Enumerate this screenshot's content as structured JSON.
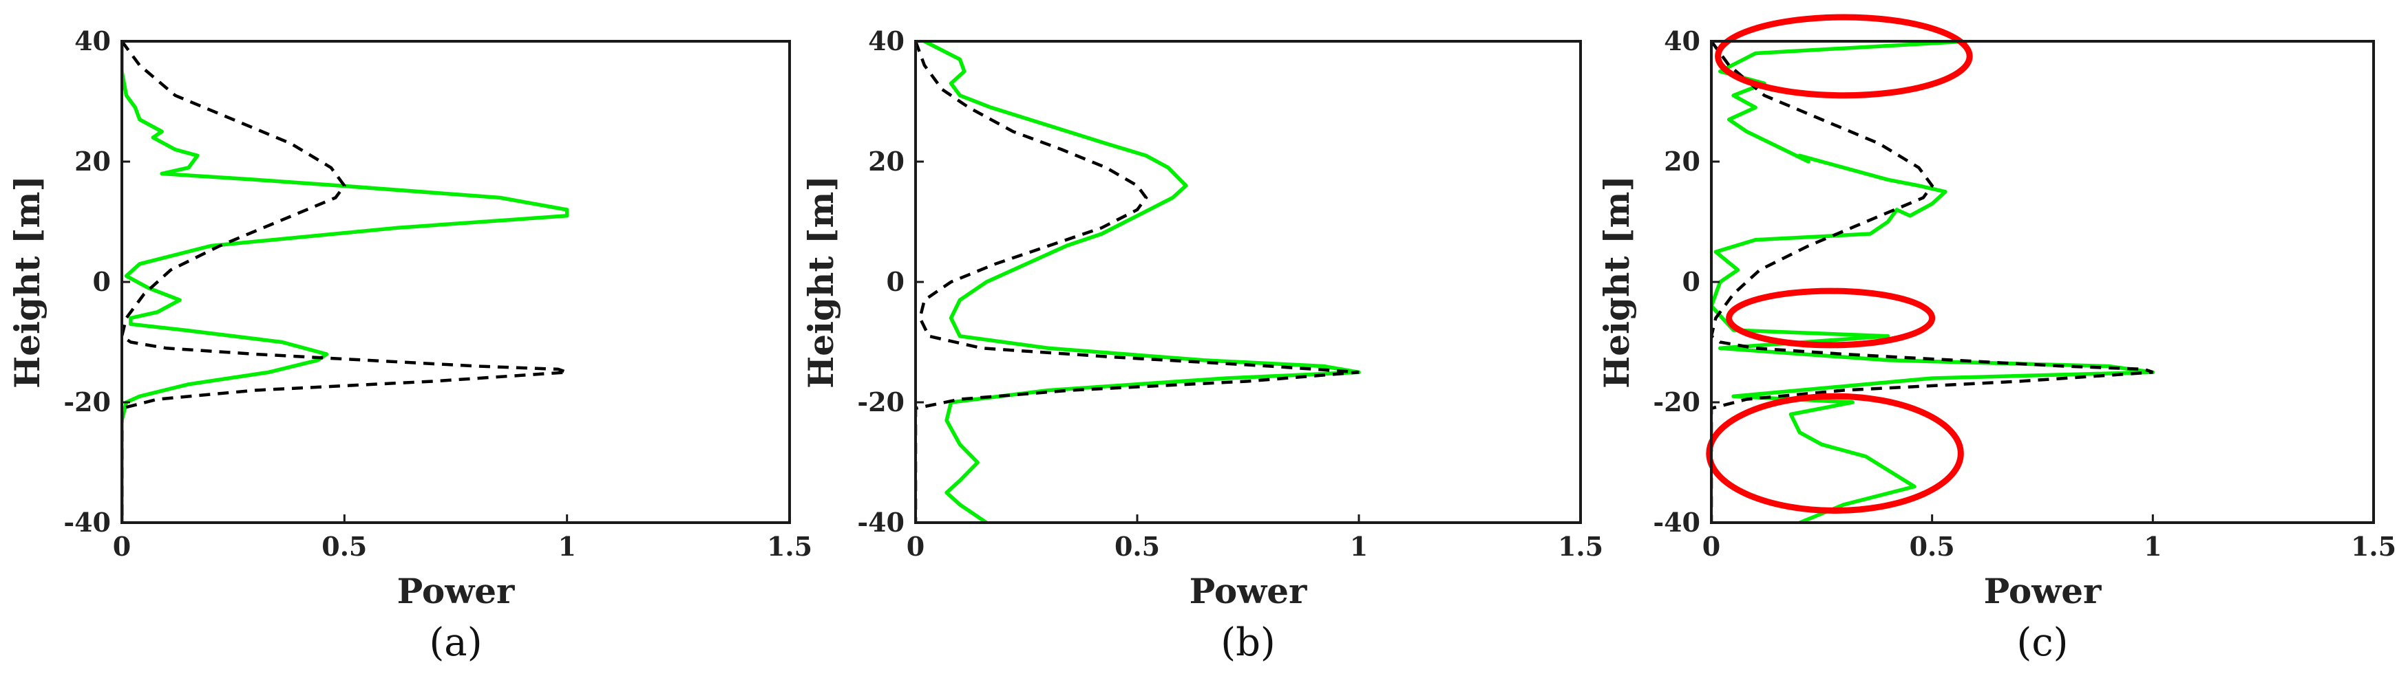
{
  "colors": {
    "green_series": "#00ee00",
    "black_series": "#000000",
    "highlight": "#ff0000"
  },
  "chart_data": [
    {
      "type": "line",
      "caption": "(a)",
      "xlabel": "Power",
      "ylabel": "Height [m]",
      "xlim": [
        0,
        1.5
      ],
      "ylim": [
        -40,
        40
      ],
      "xticks": [
        "0",
        "0.5",
        "1",
        "1.5"
      ],
      "yticks": [
        "-40",
        "-20",
        "0",
        "20",
        "40"
      ],
      "grid": false,
      "series": [
        {
          "style": "solid",
          "color": "green",
          "x": [
            0.0,
            0.0,
            0.01,
            0.03,
            0.04,
            0.09,
            0.07,
            0.12,
            0.17,
            0.15,
            0.09,
            0.3,
            0.49,
            0.85,
            1.0,
            1.0,
            0.62,
            0.2,
            0.04,
            0.01,
            0.06,
            0.13,
            0.08,
            0.02,
            0.02,
            0.14,
            0.36,
            0.46,
            0.44,
            0.33,
            0.15,
            0.04,
            0.01,
            0.0,
            0.0,
            0.0
          ],
          "y": [
            40,
            35,
            31,
            29,
            27,
            25,
            24,
            22,
            21,
            19,
            18,
            17,
            16,
            14,
            12,
            11,
            9,
            6,
            3,
            1,
            -1,
            -3,
            -5,
            -6,
            -7,
            -8,
            -10,
            -12,
            -13,
            -15,
            -17,
            -19,
            -20,
            -23,
            -30,
            -40
          ]
        },
        {
          "style": "dashed",
          "color": "black",
          "x": [
            0.0,
            0.04,
            0.12,
            0.25,
            0.38,
            0.47,
            0.5,
            0.48,
            0.35,
            0.22,
            0.11,
            0.05,
            0.01,
            0.0,
            0.02,
            0.1,
            0.3,
            0.55,
            0.8,
            0.98,
            1.0,
            0.7,
            0.3,
            0.08,
            0.0,
            0.0
          ],
          "y": [
            40,
            36,
            31,
            27,
            23,
            19,
            16,
            14,
            10,
            6,
            2,
            -2,
            -6,
            -9,
            -10,
            -11,
            -12,
            -13,
            -14,
            -14.5,
            -15,
            -16.5,
            -18,
            -19.5,
            -21,
            -40
          ]
        }
      ]
    },
    {
      "type": "line",
      "caption": "(b)",
      "xlabel": "Power",
      "ylabel": "Height [m]",
      "xlim": [
        0,
        1.5
      ],
      "ylim": [
        -40,
        40
      ],
      "xticks": [
        "0",
        "0.5",
        "1",
        "1.5"
      ],
      "yticks": [
        "-40",
        "-20",
        "0",
        "20",
        "40"
      ],
      "grid": false,
      "series": [
        {
          "style": "solid",
          "color": "green",
          "x": [
            0.02,
            0.1,
            0.11,
            0.08,
            0.1,
            0.17,
            0.3,
            0.43,
            0.52,
            0.57,
            0.61,
            0.58,
            0.5,
            0.42,
            0.34,
            0.28,
            0.22,
            0.16,
            0.1,
            0.08,
            0.1,
            0.3,
            0.65,
            0.92,
            1.0,
            0.7,
            0.3,
            0.08,
            0.07,
            0.1,
            0.14,
            0.1,
            0.07,
            0.1,
            0.16
          ],
          "y": [
            40,
            37,
            35,
            33,
            31,
            29,
            26,
            23,
            21,
            19,
            16,
            14,
            11,
            8,
            6,
            4,
            2,
            0,
            -3,
            -6,
            -9,
            -11,
            -13,
            -14,
            -15,
            -16,
            -18,
            -20,
            -23,
            -27,
            -30,
            -33,
            -35,
            -37,
            -40
          ]
        },
        {
          "style": "dashed",
          "color": "black",
          "x": [
            0.0,
            0.02,
            0.06,
            0.12,
            0.22,
            0.33,
            0.43,
            0.5,
            0.52,
            0.5,
            0.42,
            0.3,
            0.18,
            0.08,
            0.02,
            0.01,
            0.03,
            0.15,
            0.45,
            0.8,
            1.0,
            0.75,
            0.35,
            0.1,
            0.0,
            0.0
          ],
          "y": [
            40,
            36,
            32,
            29,
            25,
            22,
            19,
            16,
            14,
            12,
            9,
            6,
            3,
            0,
            -3,
            -6,
            -9,
            -11,
            -12.5,
            -14,
            -15,
            -16.5,
            -18,
            -19.5,
            -21,
            -40
          ]
        }
      ]
    },
    {
      "type": "line",
      "caption": "(c)",
      "xlabel": "Power",
      "ylabel": "Height [m]",
      "xlim": [
        0,
        1.5
      ],
      "ylim": [
        -40,
        40
      ],
      "xticks": [
        "0",
        "0.5",
        "1",
        "1.5"
      ],
      "yticks": [
        "-40",
        "-20",
        "0",
        "20",
        "40"
      ],
      "grid": false,
      "series": [
        {
          "style": "solid",
          "color": "green",
          "x": [
            0.58,
            0.1,
            0.02,
            0.12,
            0.05,
            0.1,
            0.04,
            0.08,
            0.22,
            0.2,
            0.3,
            0.4,
            0.47,
            0.53,
            0.5,
            0.45,
            0.42,
            0.4,
            0.36,
            0.1,
            0.01,
            0.06,
            0.02,
            0.0,
            0.05,
            0.4,
            0.02,
            0.4,
            0.9,
            1.0,
            0.5,
            0.05,
            0.32,
            0.18,
            0.2,
            0.25,
            0.35,
            0.46,
            0.3,
            0.2
          ],
          "y": [
            40,
            38,
            35,
            33,
            31,
            29,
            27,
            25,
            20,
            21,
            19,
            17,
            16,
            15,
            13,
            11,
            12,
            10,
            8,
            7,
            5,
            2,
            0,
            -4,
            -8,
            -9,
            -11,
            -13,
            -14,
            -15,
            -16,
            -19,
            -20,
            -22,
            -25,
            -27,
            -29,
            -34,
            -37,
            -40
          ]
        },
        {
          "style": "dashed",
          "color": "black",
          "x": [
            0.0,
            0.04,
            0.12,
            0.25,
            0.38,
            0.47,
            0.5,
            0.48,
            0.35,
            0.22,
            0.11,
            0.05,
            0.01,
            0.0,
            0.02,
            0.1,
            0.3,
            0.55,
            0.8,
            0.98,
            1.0,
            0.7,
            0.3,
            0.08,
            0.0,
            0.0
          ],
          "y": [
            40,
            36,
            31,
            27,
            23,
            19,
            16,
            14,
            10,
            6,
            2,
            -2,
            -6,
            -9,
            -10,
            -11,
            -12,
            -13,
            -14,
            -14.5,
            -15,
            -16.5,
            -18,
            -19.5,
            -21,
            -40
          ]
        }
      ],
      "highlights": [
        {
          "shape": "ellipse",
          "center": [
            0.3,
            37.5
          ],
          "radius": [
            0.285,
            6.5
          ]
        },
        {
          "shape": "ellipse",
          "center": [
            0.27,
            -6
          ],
          "radius": [
            0.23,
            4.5
          ]
        },
        {
          "shape": "ellipse",
          "center": [
            0.28,
            -28.5
          ],
          "radius": [
            0.285,
            9.5
          ]
        }
      ]
    }
  ]
}
